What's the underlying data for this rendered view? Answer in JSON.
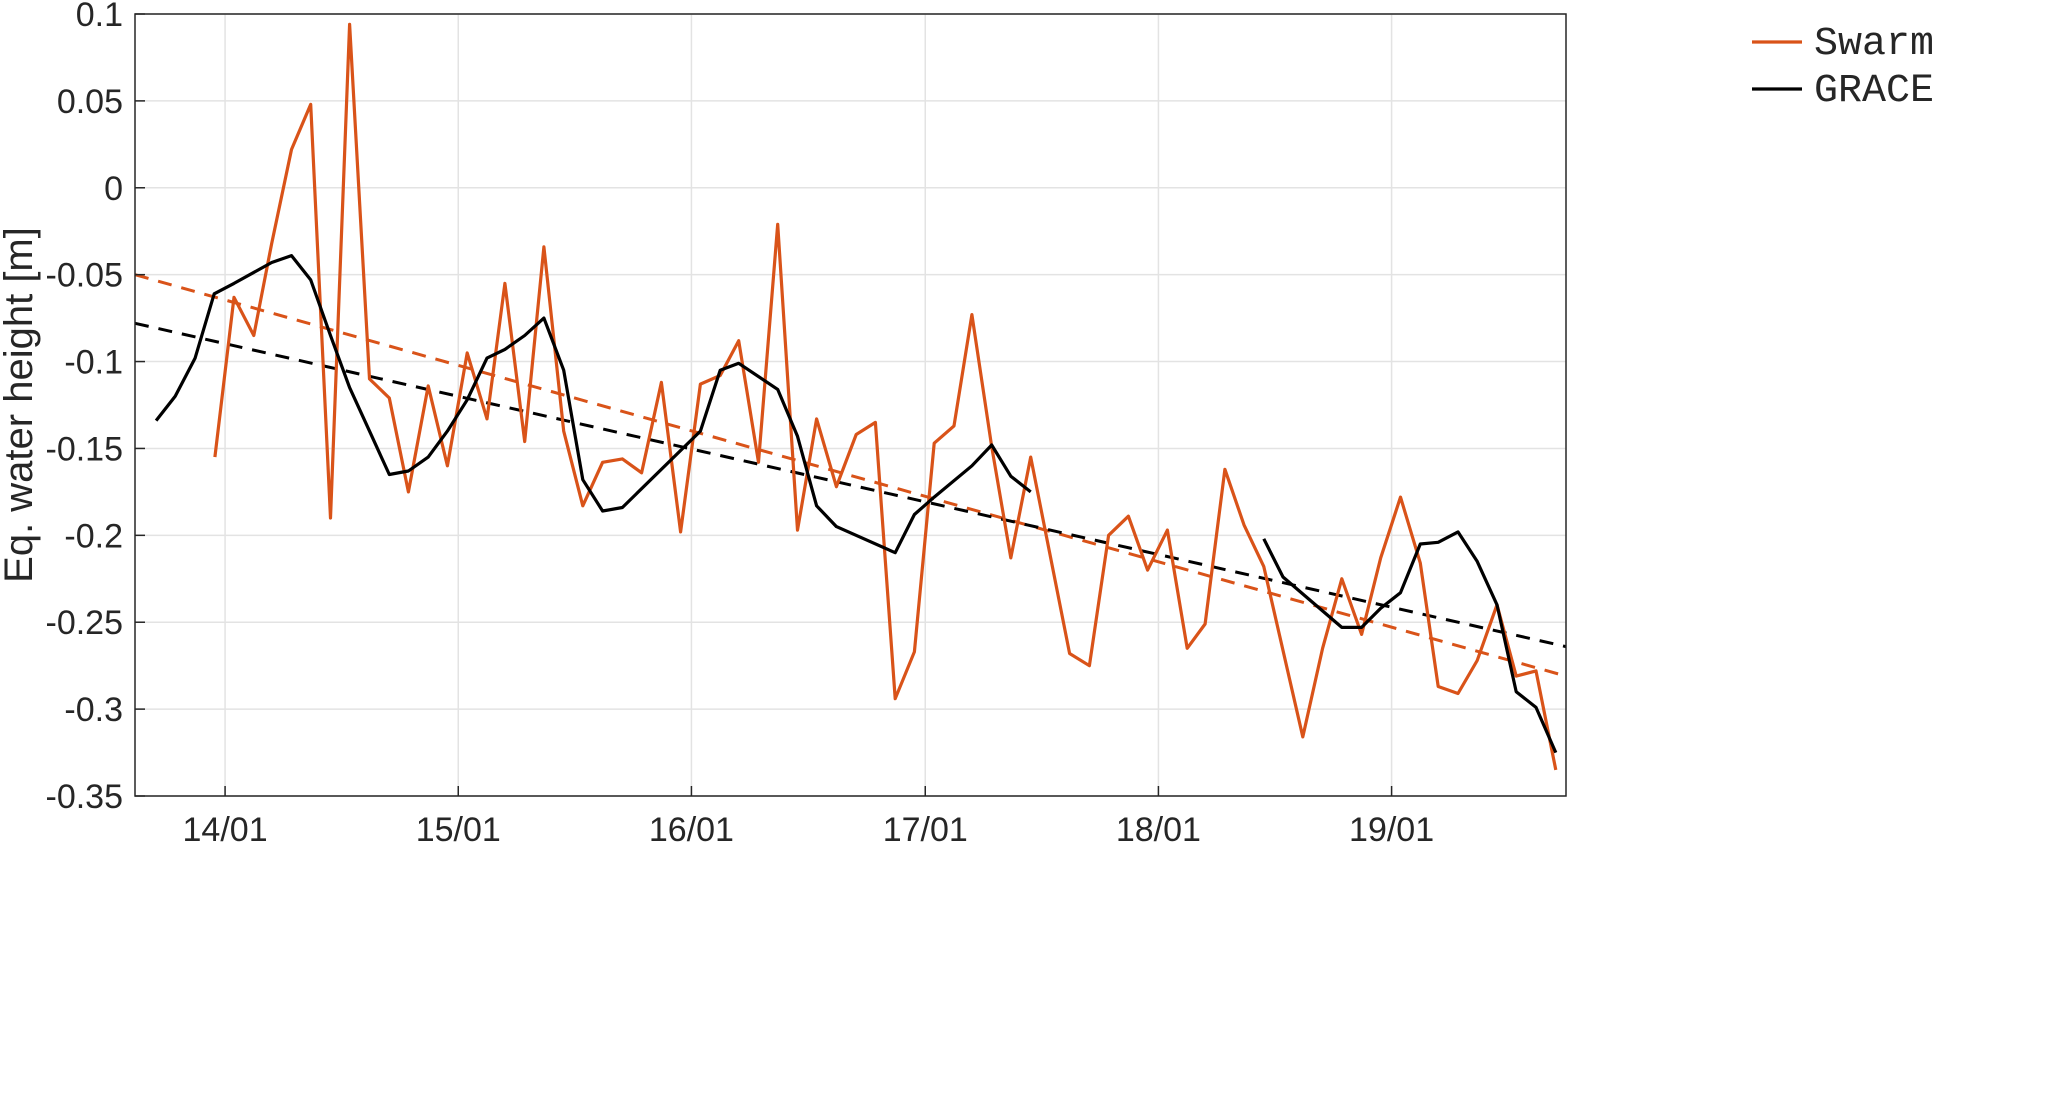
{
  "chart_data": {
    "type": "line",
    "title": "",
    "xlabel": "",
    "ylabel": "Eq. water height [m]",
    "xlim": [
      "2013-08-13",
      "2019-10-01"
    ],
    "ylim": [
      -0.35,
      0.1
    ],
    "x_ticks": [
      "2014-01-01",
      "2015-01-01",
      "2016-01-01",
      "2017-01-01",
      "2018-01-01",
      "2019-01-01"
    ],
    "x_tick_labels": [
      "14/01",
      "15/01",
      "16/01",
      "17/01",
      "18/01",
      "19/01"
    ],
    "y_ticks": [
      0.1,
      0.05,
      0,
      -0.05,
      -0.1,
      -0.15,
      -0.2,
      -0.25,
      -0.3,
      -0.35
    ],
    "y_tick_labels": [
      "0.1",
      "0.05",
      "0",
      "-0.05",
      "-0.1",
      "-0.15",
      "-0.2",
      "-0.25",
      "-0.3",
      "-0.35"
    ],
    "grid": true,
    "legend": {
      "position": "top-right",
      "entries": [
        "Swarm",
        "GRACE"
      ]
    },
    "series": [
      {
        "name": "Swarm",
        "color": "#d95319",
        "style": "solid",
        "points": [
          [
            "2013-12-16",
            -0.155
          ],
          [
            "2014-01-15",
            -0.063
          ],
          [
            "2014-02-15",
            -0.085
          ],
          [
            "2014-03-15",
            -0.032
          ],
          [
            "2014-04-15",
            0.022
          ],
          [
            "2014-05-15",
            0.048
          ],
          [
            "2014-06-15",
            -0.19
          ],
          [
            "2014-07-15",
            0.094
          ],
          [
            "2014-08-15",
            -0.11
          ],
          [
            "2014-09-15",
            -0.121
          ],
          [
            "2014-10-15",
            -0.175
          ],
          [
            "2014-11-15",
            -0.114
          ],
          [
            "2014-12-15",
            -0.16
          ],
          [
            "2015-01-15",
            -0.095
          ],
          [
            "2015-02-15",
            -0.133
          ],
          [
            "2015-03-15",
            -0.055
          ],
          [
            "2015-04-15",
            -0.146
          ],
          [
            "2015-05-15",
            -0.034
          ],
          [
            "2015-06-15",
            -0.14
          ],
          [
            "2015-07-15",
            -0.183
          ],
          [
            "2015-08-15",
            -0.158
          ],
          [
            "2015-09-15",
            -0.156
          ],
          [
            "2015-10-15",
            -0.164
          ],
          [
            "2015-11-15",
            -0.112
          ],
          [
            "2015-12-15",
            -0.198
          ],
          [
            "2016-01-15",
            -0.113
          ],
          [
            "2016-02-15",
            -0.108
          ],
          [
            "2016-03-15",
            -0.088
          ],
          [
            "2016-04-15",
            -0.158
          ],
          [
            "2016-05-15",
            -0.021
          ],
          [
            "2016-06-15",
            -0.197
          ],
          [
            "2016-07-15",
            -0.133
          ],
          [
            "2016-08-15",
            -0.172
          ],
          [
            "2016-09-15",
            -0.142
          ],
          [
            "2016-10-15",
            -0.135
          ],
          [
            "2016-11-15",
            -0.294
          ],
          [
            "2016-12-15",
            -0.267
          ],
          [
            "2017-01-15",
            -0.147
          ],
          [
            "2017-02-15",
            -0.137
          ],
          [
            "2017-03-15",
            -0.073
          ],
          [
            "2017-04-15",
            -0.149
          ],
          [
            "2017-05-15",
            -0.213
          ],
          [
            "2017-06-15",
            -0.155
          ],
          [
            "2017-08-15",
            -0.268
          ],
          [
            "2017-09-15",
            -0.275
          ],
          [
            "2017-10-15",
            -0.2
          ],
          [
            "2017-11-15",
            -0.189
          ],
          [
            "2017-12-15",
            -0.22
          ],
          [
            "2018-01-15",
            -0.197
          ],
          [
            "2018-02-15",
            -0.265
          ],
          [
            "2018-03-15",
            -0.251
          ],
          [
            "2018-04-15",
            -0.162
          ],
          [
            "2018-05-15",
            -0.194
          ],
          [
            "2018-06-15",
            -0.218
          ],
          [
            "2018-08-15",
            -0.316
          ],
          [
            "2018-09-15",
            -0.265
          ],
          [
            "2018-10-15",
            -0.225
          ],
          [
            "2018-11-15",
            -0.257
          ],
          [
            "2018-12-15",
            -0.213
          ],
          [
            "2019-01-15",
            -0.178
          ],
          [
            "2019-02-15",
            -0.216
          ],
          [
            "2019-03-15",
            -0.287
          ],
          [
            "2019-04-15",
            -0.291
          ],
          [
            "2019-05-15",
            -0.272
          ],
          [
            "2019-06-15",
            -0.24
          ],
          [
            "2019-07-15",
            -0.281
          ],
          [
            "2019-08-15",
            -0.278
          ],
          [
            "2019-09-15",
            -0.335
          ]
        ]
      },
      {
        "name": "GRACE",
        "color": "#000000",
        "style": "solid",
        "segments": [
          [
            [
              "2013-09-15",
              -0.134
            ],
            [
              "2013-10-15",
              -0.12
            ],
            [
              "2013-11-15",
              -0.098
            ],
            [
              "2013-12-15",
              -0.061
            ],
            [
              "2014-01-15",
              -0.055
            ],
            [
              "2014-03-15",
              -0.043
            ],
            [
              "2014-04-15",
              -0.039
            ],
            [
              "2014-05-15",
              -0.053
            ],
            [
              "2014-06-15",
              -0.085
            ],
            [
              "2014-07-15",
              -0.115
            ],
            [
              "2014-08-15",
              -0.14
            ],
            [
              "2014-09-15",
              -0.165
            ],
            [
              "2014-10-15",
              -0.163
            ],
            [
              "2014-11-15",
              -0.155
            ],
            [
              "2014-12-15",
              -0.14
            ],
            [
              "2015-01-15",
              -0.122
            ],
            [
              "2015-02-15",
              -0.098
            ],
            [
              "2015-03-15",
              -0.093
            ],
            [
              "2015-04-15",
              -0.085
            ],
            [
              "2015-05-15",
              -0.075
            ],
            [
              "2015-06-15",
              -0.105
            ],
            [
              "2015-07-15",
              -0.168
            ],
            [
              "2015-08-15",
              -0.186
            ],
            [
              "2015-09-15",
              -0.184
            ],
            [
              "2016-01-15",
              -0.14
            ],
            [
              "2016-02-15",
              -0.105
            ],
            [
              "2016-03-15",
              -0.101
            ],
            [
              "2016-05-15",
              -0.116
            ],
            [
              "2016-06-15",
              -0.143
            ],
            [
              "2016-07-15",
              -0.183
            ],
            [
              "2016-08-15",
              -0.195
            ],
            [
              "2016-11-15",
              -0.21
            ],
            [
              "2016-12-15",
              -0.188
            ],
            [
              "2017-01-15",
              -0.178
            ],
            [
              "2017-03-15",
              -0.16
            ],
            [
              "2017-04-15",
              -0.148
            ],
            [
              "2017-05-15",
              -0.166
            ],
            [
              "2017-06-15",
              -0.175
            ]
          ],
          [
            [
              "2018-06-15",
              -0.202
            ],
            [
              "2018-07-15",
              -0.224
            ],
            [
              "2018-10-15",
              -0.253
            ],
            [
              "2018-11-15",
              -0.253
            ],
            [
              "2018-12-15",
              -0.242
            ],
            [
              "2019-01-15",
              -0.233
            ],
            [
              "2019-02-15",
              -0.205
            ],
            [
              "2019-03-15",
              -0.204
            ],
            [
              "2019-04-15",
              -0.198
            ],
            [
              "2019-05-15",
              -0.215
            ],
            [
              "2019-06-15",
              -0.24
            ],
            [
              "2019-07-15",
              -0.29
            ],
            [
              "2019-08-15",
              -0.299
            ],
            [
              "2019-09-15",
              -0.325
            ]
          ]
        ]
      },
      {
        "name": "",
        "color": "#d95319",
        "style": "dashed",
        "trend": true,
        "points": [
          [
            "2013-08-13",
            -0.05
          ],
          [
            "2019-10-01",
            -0.281
          ]
        ]
      },
      {
        "name": "",
        "color": "#000000",
        "style": "dashed",
        "trend": true,
        "points": [
          [
            "2013-08-13",
            -0.078
          ],
          [
            "2019-10-01",
            -0.264
          ]
        ]
      }
    ]
  }
}
